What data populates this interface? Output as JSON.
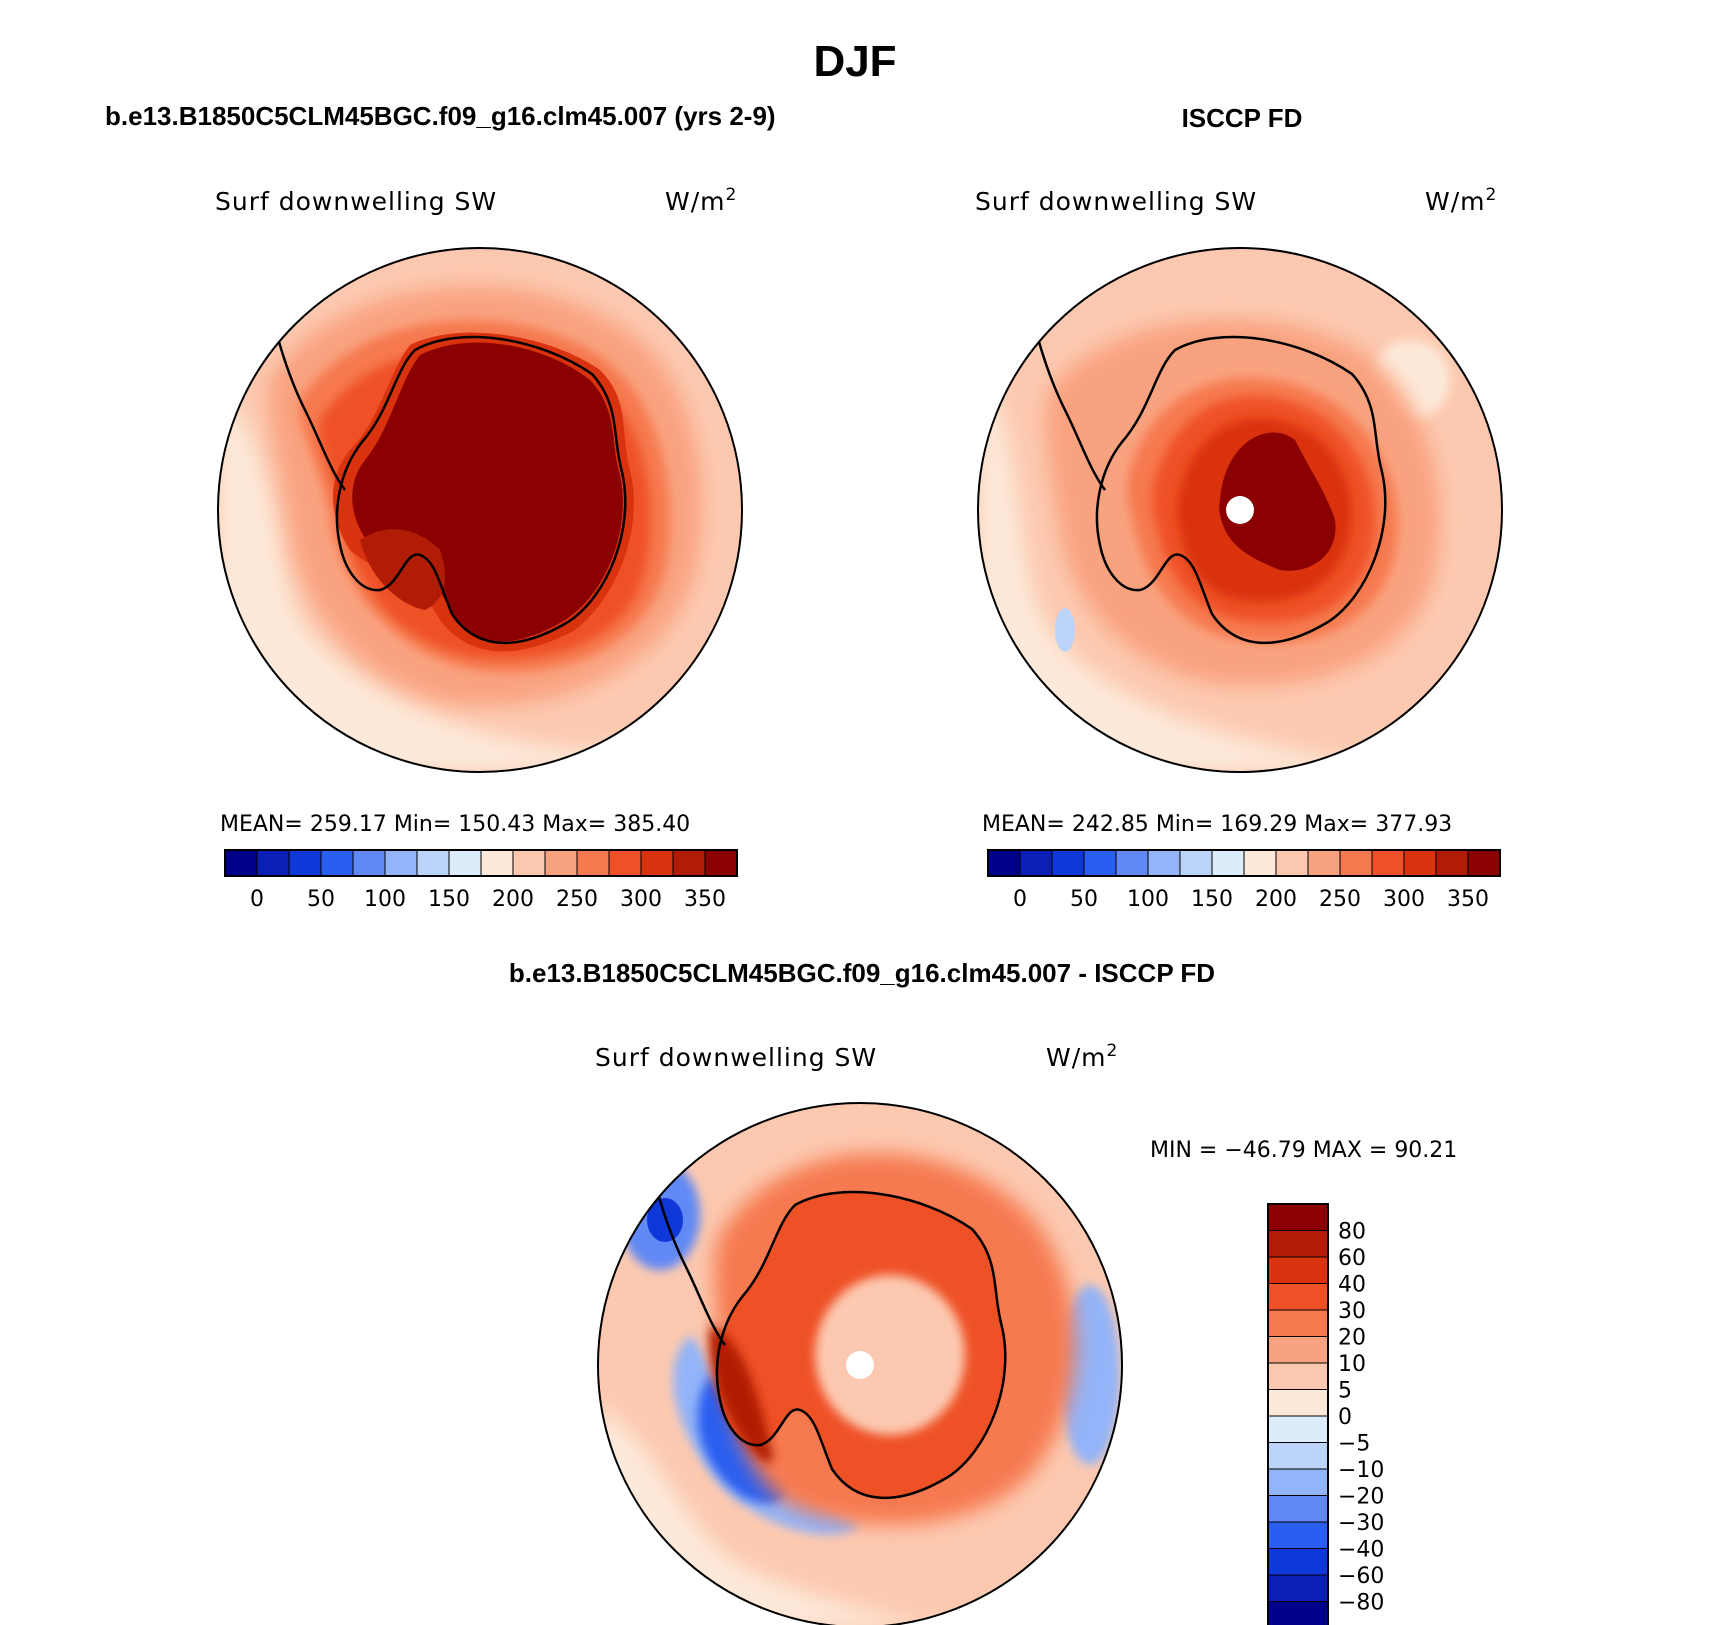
{
  "figure": {
    "title": "DJF"
  },
  "chart_data": [
    {
      "type": "heatmap",
      "projection": "south-polar-stereographic",
      "panel_title": "b.e13.B1850C5CLM45BGC.f09_g16.clm45.007 (yrs 2-9)",
      "variable": "Surf downwelling SW",
      "units": "W/m",
      "units_sup": "2",
      "stats": {
        "mean_label": "MEAN=",
        "mean": "259.17",
        "min_label": "Min=",
        "min": "150.43",
        "max_label": "Max=",
        "max": "385.40"
      },
      "colorbar": {
        "orientation": "horizontal",
        "levels": [
          0,
          25,
          50,
          75,
          100,
          125,
          150,
          175,
          200,
          225,
          250,
          275,
          300,
          325,
          350
        ],
        "tick_labels": [
          "0",
          "50",
          "100",
          "150",
          "200",
          "250",
          "300",
          "350"
        ],
        "colors": [
          "#00008b",
          "#0a1fb4",
          "#1038d8",
          "#2a5ef0",
          "#6089f5",
          "#93b4f8",
          "#bcd4fa",
          "#dcecfb",
          "#fde9d9",
          "#fcc9b0",
          "#f9a27f",
          "#f6794f",
          "#ef5127",
          "#d9320f",
          "#b01c05",
          "#8b0000"
        ]
      },
      "field": {
        "antarctica_interior": 360,
        "antarctica_coast": 330,
        "shelf": 300,
        "near_ring": 250,
        "outer_ocean": 215,
        "far_pacific": 190
      }
    },
    {
      "type": "heatmap",
      "projection": "south-polar-stereographic",
      "panel_title": "ISCCP FD",
      "variable": "Surf downwelling SW",
      "units": "W/m",
      "units_sup": "2",
      "stats": {
        "mean_label": "MEAN=",
        "mean": "242.85",
        "min_label": "Min=",
        "min": "169.29",
        "max_label": "Max=",
        "max": "377.93"
      },
      "colorbar": {
        "orientation": "horizontal",
        "levels": [
          0,
          25,
          50,
          75,
          100,
          125,
          150,
          175,
          200,
          225,
          250,
          275,
          300,
          325,
          350
        ],
        "tick_labels": [
          "0",
          "50",
          "100",
          "150",
          "200",
          "250",
          "300",
          "350"
        ],
        "colors": [
          "#00008b",
          "#0a1fb4",
          "#1038d8",
          "#2a5ef0",
          "#6089f5",
          "#93b4f8",
          "#bcd4fa",
          "#dcecfb",
          "#fde9d9",
          "#fcc9b0",
          "#f9a27f",
          "#f6794f",
          "#ef5127",
          "#d9320f",
          "#b01c05",
          "#8b0000"
        ]
      },
      "field": {
        "antarctica_interior": 355,
        "antarctica_coast": 290,
        "shelf": 265,
        "near_ring": 235,
        "outer_ocean": 210,
        "far_pacific": 190,
        "missing_pole": true
      }
    },
    {
      "type": "heatmap",
      "projection": "south-polar-stereographic",
      "panel_title": "b.e13.B1850C5CLM45BGC.f09_g16.clm45.007 - ISCCP FD",
      "variable": "Surf downwelling SW",
      "units": "W/m",
      "units_sup": "2",
      "stats": {
        "min_label": "MIN =",
        "min": "−46.79",
        "max_label": "MAX =",
        "max": "90.21"
      },
      "colorbar": {
        "orientation": "vertical",
        "levels": [
          -80,
          -60,
          -40,
          -30,
          -20,
          -10,
          -5,
          0,
          5,
          10,
          20,
          30,
          40,
          60,
          80
        ],
        "tick_labels": [
          "−80",
          "−60",
          "−40",
          "−30",
          "−20",
          "−10",
          "−5",
          "0",
          "5",
          "10",
          "20",
          "30",
          "40",
          "60",
          "80"
        ],
        "colors": [
          "#00008b",
          "#0a1fb4",
          "#1038d8",
          "#2a5ef0",
          "#6089f5",
          "#93b4f8",
          "#bcd4fa",
          "#dcecfb",
          "#fde9d9",
          "#fcc9b0",
          "#f9a27f",
          "#f6794f",
          "#ef5127",
          "#d9320f",
          "#b01c05",
          "#8b0000"
        ]
      },
      "field": {
        "antarctica_interior": 8,
        "antarctica_ring": 50,
        "coast": 40,
        "peninsula_shelf": 60,
        "pacific_sector": -30,
        "bellingshausen_core": -40,
        "atlantic_patch": -25,
        "outer_ocean": 12,
        "missing_pole": true
      }
    }
  ]
}
